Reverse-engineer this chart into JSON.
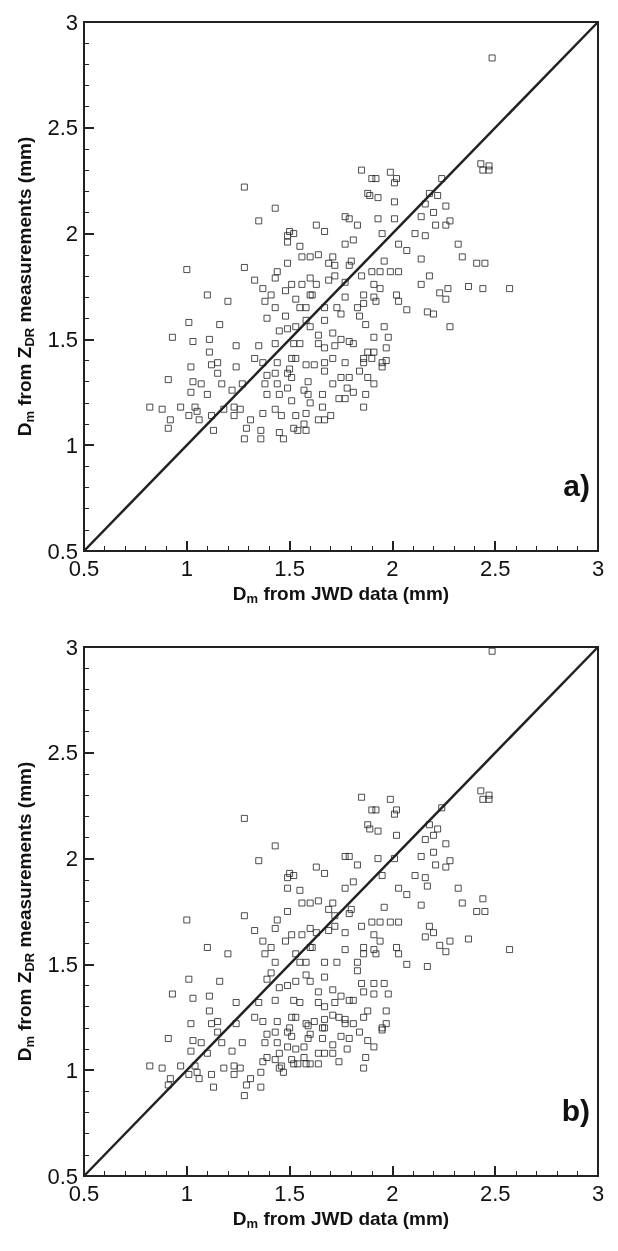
{
  "chart_data": [
    {
      "type": "scatter",
      "xlabel": "D$_{m}$ from JWD data (mm)",
      "ylabel": "D$_{m}$ from Z$_{DR}$ measurements (mm)",
      "annotations": [
        "a)"
      ],
      "xlim": [
        0.5,
        3
      ],
      "ylim": [
        0.5,
        3
      ],
      "xticks": [
        0.5,
        1,
        1.5,
        2,
        2.5,
        3
      ],
      "yticks": [
        0.5,
        1,
        1.5,
        2,
        2.5,
        3
      ],
      "series": [
        {
          "marker": "square",
          "color": "#222222",
          "x": [
            2.485,
            2.43,
            2.44,
            2.47,
            2.47,
            2.24,
            2.18,
            2.22,
            2.16,
            2.2,
            2.26,
            2.21,
            2.26,
            2.28,
            2.14,
            2.11,
            2.16,
            2.32,
            2.34,
            2.14,
            2.41,
            2.45,
            2.18,
            2.14,
            2.23,
            2.27,
            2.37,
            2.44,
            2.57,
            2.26,
            2.17,
            2.2,
            2.28,
            1.85,
            1.99,
            1.9,
            1.92,
            2.02,
            2.01,
            1.88,
            1.89,
            1.93,
            2.01,
            1.77,
            1.79,
            1.83,
            1.93,
            2.01,
            1.95,
            2.03,
            2.07,
            1.96,
            1.9,
            1.94,
            1.99,
            2.03,
            2.02,
            2.03,
            2.07,
            1.28,
            1.43,
            1.35,
            1.5,
            1.52,
            1.49,
            1.49,
            1.55,
            1.63,
            1.67,
            1.56,
            1.6,
            1.64,
            1.71,
            1.49,
            1.28,
            1.0,
            1.44,
            1.33,
            1.37,
            1.43,
            1.41,
            1.1,
            1.2,
            1.38,
            1.43,
            1.48,
            1.51,
            1.56,
            1.63,
            1.6,
            1.69,
            1.72,
            1.69,
            1.72,
            1.77,
            1.81,
            1.79,
            1.8,
            1.85,
            1.77,
            1.77,
            1.86,
            1.91,
            1.86,
            1.92,
            1.91,
            1.94,
            1.53,
            1.55,
            1.58,
            1.6,
            1.61,
            1.67,
            1.73,
            1.75,
            1.48,
            1.39,
            1.01,
            1.16,
            0.93,
            1.03,
            1.11,
            1.24,
            1.11,
            1.12,
            1.15,
            1.02,
            1.24,
            1.15,
            0.91,
            1.03,
            1.07,
            1.17,
            1.02,
            1.1,
            1.22,
            1.27,
            0.82,
            0.88,
            0.97,
            1.04,
            1.05,
            0.92,
            0.91,
            1.01,
            1.06,
            1.12,
            1.13,
            1.18,
            1.23,
            1.26,
            1.23,
            1.31,
            1.29,
            1.28,
            1.36,
            1.36,
            1.45,
            1.47,
            1.37,
            1.43,
            1.46,
            1.52,
            1.54,
            1.58,
            1.53,
            1.57,
            1.58,
            1.64,
            1.67,
            1.7,
            1.66,
            1.6,
            1.59,
            1.66,
            1.74,
            1.77,
            1.81,
            1.86,
            1.87,
            1.91,
            1.88,
            1.84,
            1.86,
            1.86,
            1.9,
            1.95,
            1.97,
            1.95,
            1.98,
            1.97,
            1.96,
            1.91,
            1.87,
            1.84,
            1.83,
            1.91,
            1.88,
            1.79,
            1.81,
            1.75,
            1.72,
            1.67,
            1.64,
            1.64,
            1.67,
            1.71,
            1.6,
            1.58,
            1.53,
            1.45,
            1.49,
            1.52,
            1.55,
            1.51,
            1.53,
            1.58,
            1.5,
            1.49,
            1.51,
            1.44,
            1.39,
            1.37,
            1.33,
            1.35,
            1.43,
            1.43,
            1.44,
            1.38,
            1.39,
            1.45,
            1.49,
            1.51,
            1.57,
            1.59,
            1.62,
            1.67,
            1.71,
            1.75,
            1.79,
            1.78,
            1.77,
            1.71,
            1.67
          ],
          "values": [
            2.83,
            2.33,
            2.3,
            2.32,
            2.3,
            2.26,
            2.19,
            2.18,
            2.14,
            2.1,
            2.13,
            2.04,
            2.04,
            2.06,
            2.08,
            2.0,
            1.99,
            1.95,
            1.89,
            1.88,
            1.86,
            1.86,
            1.8,
            1.76,
            1.72,
            1.74,
            1.75,
            1.74,
            1.74,
            1.69,
            1.63,
            1.62,
            1.56,
            2.3,
            2.29,
            2.26,
            2.26,
            2.26,
            2.24,
            2.19,
            2.18,
            2.17,
            2.15,
            2.08,
            2.07,
            2.04,
            2.07,
            2.07,
            2.0,
            1.95,
            1.92,
            1.87,
            1.82,
            1.82,
            1.82,
            1.82,
            1.71,
            1.68,
            1.64,
            2.22,
            2.12,
            2.06,
            2.01,
            2.0,
            1.99,
            1.96,
            1.94,
            2.04,
            2.01,
            1.89,
            1.89,
            1.9,
            1.89,
            1.86,
            1.84,
            1.83,
            1.82,
            1.78,
            1.74,
            1.79,
            1.71,
            1.71,
            1.68,
            1.68,
            1.65,
            1.73,
            1.76,
            1.76,
            1.76,
            1.79,
            1.86,
            1.85,
            1.78,
            1.8,
            1.95,
            1.97,
            1.85,
            1.87,
            1.8,
            1.77,
            1.7,
            1.71,
            1.7,
            1.67,
            1.68,
            1.76,
            1.74,
            1.69,
            1.65,
            1.65,
            1.71,
            1.71,
            1.65,
            1.65,
            1.62,
            1.61,
            1.6,
            1.58,
            1.57,
            1.51,
            1.49,
            1.5,
            1.47,
            1.44,
            1.38,
            1.39,
            1.37,
            1.37,
            1.34,
            1.31,
            1.3,
            1.29,
            1.29,
            1.25,
            1.24,
            1.26,
            1.29,
            1.18,
            1.17,
            1.18,
            1.18,
            1.16,
            1.12,
            1.08,
            1.14,
            1.12,
            1.14,
            1.07,
            1.17,
            1.18,
            1.17,
            1.14,
            1.12,
            1.08,
            1.03,
            1.07,
            1.03,
            1.06,
            1.03,
            1.15,
            1.17,
            1.14,
            1.08,
            1.07,
            1.07,
            1.14,
            1.1,
            1.15,
            1.12,
            1.12,
            1.14,
            1.18,
            1.2,
            1.24,
            1.24,
            1.22,
            1.22,
            1.25,
            1.18,
            1.24,
            1.29,
            1.32,
            1.35,
            1.39,
            1.41,
            1.41,
            1.39,
            1.4,
            1.37,
            1.51,
            1.46,
            1.56,
            1.51,
            1.57,
            1.61,
            1.65,
            1.44,
            1.44,
            1.49,
            1.48,
            1.5,
            1.47,
            1.46,
            1.48,
            1.52,
            1.59,
            1.53,
            1.56,
            1.59,
            1.56,
            1.54,
            1.55,
            1.48,
            1.48,
            1.41,
            1.41,
            1.38,
            1.36,
            1.34,
            1.32,
            1.39,
            1.33,
            1.39,
            1.41,
            1.47,
            1.48,
            1.34,
            1.29,
            1.29,
            1.24,
            1.24,
            1.27,
            1.21,
            1.26,
            1.3,
            1.38,
            1.35,
            1.29,
            1.32,
            1.32,
            1.27,
            1.39,
            1.41,
            1.39
          ]
        },
        {
          "type": "line",
          "marker": "none",
          "color": "#222222",
          "line_style": "solid",
          "x": [
            0.5,
            3
          ],
          "values": [
            0.5,
            3
          ]
        }
      ]
    },
    {
      "type": "scatter",
      "xlabel": "D$_{m}$ from JWD data (mm)",
      "ylabel": "D$_{m}$ from Z$_{DR}$ measurements (mm)",
      "annotations": [
        "b)"
      ],
      "xlim": [
        0.5,
        3
      ],
      "ylim": [
        0.5,
        3
      ],
      "xticks": [
        0.5,
        1,
        1.5,
        2,
        2.5,
        3
      ],
      "yticks": [
        0.5,
        1,
        1.5,
        2,
        2.5,
        3
      ],
      "series": [
        {
          "marker": "square",
          "color": "#222222",
          "x": [
            2.485,
            2.43,
            2.44,
            2.47,
            2.47,
            2.24,
            2.18,
            2.22,
            2.16,
            2.2,
            2.26,
            2.21,
            2.26,
            2.28,
            2.14,
            2.11,
            2.16,
            2.2,
            2.17,
            2.32,
            2.34,
            2.44,
            2.41,
            2.45,
            2.14,
            2.18,
            2.2,
            2.16,
            2.37,
            2.28,
            2.23,
            2.26,
            2.57,
            2.17,
            2.07,
            1.85,
            1.99,
            1.9,
            1.92,
            2.02,
            2.01,
            1.88,
            1.89,
            1.93,
            2.02,
            1.77,
            1.79,
            1.83,
            1.93,
            2.01,
            1.95,
            2.03,
            2.07,
            1.96,
            1.9,
            1.94,
            1.99,
            2.03,
            2.02,
            2.03,
            1.28,
            1.43,
            1.35,
            1.5,
            1.52,
            1.49,
            1.49,
            1.55,
            1.63,
            1.67,
            1.56,
            1.6,
            1.64,
            1.71,
            1.49,
            1.28,
            1.0,
            1.44,
            1.33,
            1.37,
            1.43,
            1.41,
            1.1,
            1.2,
            1.38,
            1.43,
            1.48,
            1.51,
            1.56,
            1.63,
            1.6,
            1.69,
            1.72,
            1.69,
            1.72,
            1.77,
            1.81,
            1.79,
            1.8,
            1.85,
            1.77,
            1.77,
            1.86,
            1.91,
            1.86,
            1.92,
            1.91,
            1.94,
            1.53,
            1.55,
            1.58,
            1.6,
            1.61,
            1.67,
            1.73,
            1.83,
            1.01,
            1.16,
            0.93,
            1.03,
            1.11,
            1.24,
            1.11,
            1.12,
            1.15,
            1.02,
            1.24,
            1.15,
            0.91,
            1.03,
            1.07,
            1.17,
            1.02,
            1.1,
            1.22,
            1.27,
            0.82,
            0.88,
            0.97,
            1.04,
            1.05,
            0.92,
            0.91,
            1.01,
            1.06,
            1.12,
            1.13,
            1.18,
            1.23,
            1.26,
            1.23,
            1.31,
            1.29,
            1.28,
            1.36,
            1.36,
            1.45,
            1.47,
            1.37,
            1.43,
            1.46,
            1.52,
            1.54,
            1.58,
            1.53,
            1.57,
            1.6,
            1.64,
            1.64,
            1.67,
            1.71,
            1.74,
            1.66,
            1.6,
            1.59,
            1.66,
            1.74,
            1.77,
            1.81,
            1.86,
            1.87,
            1.91,
            1.88,
            1.84,
            1.86,
            1.88,
            1.86,
            1.91,
            1.95,
            1.97,
            1.95,
            1.98,
            1.97,
            1.96,
            1.91,
            1.85,
            1.83,
            1.79,
            1.81,
            1.75,
            1.72,
            1.67,
            1.64,
            1.64,
            1.67,
            1.71,
            1.6,
            1.58,
            1.53,
            1.45,
            1.49,
            1.52,
            1.55,
            1.51,
            1.53,
            1.58,
            1.5,
            1.49,
            1.51,
            1.44,
            1.39,
            1.37,
            1.33,
            1.35,
            1.43,
            1.43,
            1.44,
            1.38,
            1.39,
            1.45,
            1.49,
            1.51,
            1.57,
            1.59,
            1.62,
            1.67,
            1.71,
            1.75,
            1.79,
            1.78,
            1.77,
            1.71,
            1.67,
            1.41,
            1.39
          ],
          "values": [
            2.98,
            2.32,
            2.28,
            2.3,
            2.28,
            2.24,
            2.16,
            2.14,
            2.09,
            2.11,
            2.07,
            1.97,
            1.96,
            1.99,
            2.01,
            1.92,
            1.91,
            2.03,
            1.87,
            1.86,
            1.79,
            1.81,
            1.75,
            1.75,
            1.78,
            1.68,
            1.65,
            1.63,
            1.62,
            1.61,
            1.59,
            1.56,
            1.57,
            1.49,
            1.5,
            2.29,
            2.28,
            2.23,
            2.23,
            2.23,
            2.21,
            2.16,
            2.14,
            2.13,
            2.11,
            2.01,
            2.01,
            1.97,
            2.0,
            2.0,
            1.92,
            1.86,
            1.83,
            1.77,
            1.7,
            1.7,
            1.7,
            1.7,
            1.58,
            1.55,
            2.19,
            2.06,
            1.99,
            1.93,
            1.92,
            1.91,
            1.86,
            1.85,
            1.96,
            1.93,
            1.79,
            1.79,
            1.8,
            1.79,
            1.75,
            1.73,
            1.71,
            1.71,
            1.66,
            1.61,
            1.67,
            1.58,
            1.58,
            1.55,
            1.55,
            1.51,
            1.61,
            1.64,
            1.64,
            1.65,
            1.67,
            1.76,
            1.73,
            1.66,
            1.68,
            1.86,
            1.89,
            1.74,
            1.76,
            1.68,
            1.65,
            1.57,
            1.58,
            1.57,
            1.55,
            1.55,
            1.64,
            1.61,
            1.55,
            1.51,
            1.51,
            1.58,
            1.58,
            1.51,
            1.51,
            1.51,
            1.43,
            1.42,
            1.36,
            1.34,
            1.35,
            1.32,
            1.28,
            1.22,
            1.23,
            1.22,
            1.22,
            1.18,
            1.15,
            1.14,
            1.13,
            1.13,
            1.09,
            1.08,
            1.09,
            1.13,
            1.02,
            1.01,
            1.02,
            1.02,
            0.99,
            0.96,
            0.93,
            0.98,
            0.96,
            0.98,
            0.92,
            1.01,
            1.02,
            1.01,
            0.98,
            0.96,
            0.93,
            0.88,
            0.99,
            0.92,
            1.01,
            0.99,
            1.04,
            1.05,
            1.02,
            1.03,
            1.03,
            1.03,
            1.1,
            1.06,
            1.03,
            1.03,
            1.08,
            1.08,
            1.08,
            1.04,
            1.15,
            1.17,
            1.21,
            1.2,
            1.25,
            1.22,
            1.22,
            1.01,
            1.06,
            1.11,
            1.14,
            1.18,
            1.25,
            1.28,
            1.37,
            1.36,
            1.2,
            1.22,
            1.19,
            1.36,
            1.28,
            1.41,
            1.41,
            1.41,
            1.47,
            1.33,
            1.33,
            1.35,
            1.32,
            1.3,
            1.32,
            1.37,
            1.44,
            1.38,
            1.42,
            1.45,
            1.42,
            1.39,
            1.4,
            1.33,
            1.32,
            1.25,
            1.25,
            1.22,
            1.2,
            1.18,
            1.16,
            1.23,
            1.17,
            1.23,
            1.25,
            1.32,
            1.33,
            1.18,
            1.13,
            1.13,
            1.06,
            1.08,
            1.11,
            1.05,
            1.11,
            1.15,
            1.23,
            1.2,
            1.12,
            1.16,
            1.15,
            1.1,
            1.24,
            1.26,
            1.24,
            1.46,
            1.43
          ]
        },
        {
          "type": "line",
          "marker": "none",
          "color": "#222222",
          "line_style": "solid",
          "x": [
            0.5,
            3
          ],
          "values": [
            0.5,
            3
          ]
        }
      ]
    }
  ]
}
